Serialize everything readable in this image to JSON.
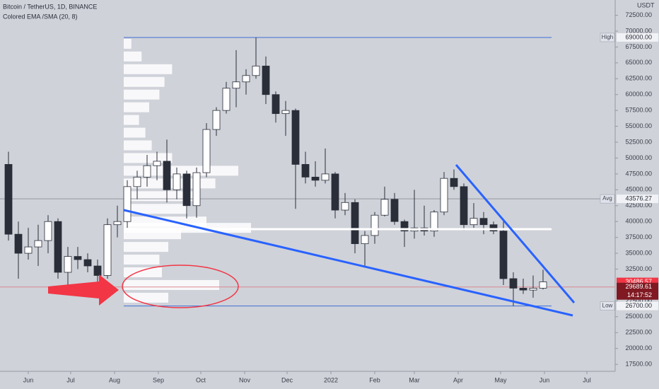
{
  "header": {
    "symbol": "Bitcoin / TetherUS, 1D, BINANCE",
    "indicator": "Colored EMA /SMA (20, 8)",
    "currency": "USDT"
  },
  "chart_data": {
    "type": "candlestick",
    "x": [
      -14,
      -7,
      0,
      7,
      14,
      21,
      28,
      35,
      42,
      49,
      56,
      63,
      70,
      77,
      84,
      91,
      98,
      105,
      112,
      119,
      126,
      133,
      140,
      147,
      154,
      161,
      168,
      175,
      182,
      189,
      196,
      203,
      210,
      217,
      224,
      231,
      238,
      245,
      252,
      259,
      266,
      273,
      280,
      287,
      294,
      301,
      308,
      315,
      322,
      329,
      336,
      343,
      350,
      357,
      364
    ],
    "open": [
      49000,
      38000,
      35000,
      36000,
      37000,
      40000,
      32000,
      34500,
      34000,
      33000,
      31500,
      39500,
      40000,
      45500,
      47000,
      48800,
      49500,
      45000,
      47500,
      42500,
      47700,
      54500,
      57500,
      61000,
      62000,
      63000,
      64500,
      60000,
      57000,
      57500,
      49000,
      47000,
      46500,
      47500,
      41800,
      43000,
      36500,
      37800,
      41000,
      43500,
      40000,
      38500,
      39000,
      38500,
      41500,
      46800,
      45500,
      39500,
      40500,
      39500,
      38500,
      31000,
      29500,
      29200,
      29500
    ],
    "high": [
      51000,
      40000,
      39000,
      39500,
      41000,
      40500,
      36000,
      36000,
      35000,
      34000,
      40500,
      42500,
      46500,
      48000,
      50500,
      51000,
      52900,
      48500,
      48000,
      48500,
      55500,
      58000,
      62000,
      67000,
      64000,
      69000,
      66000,
      60500,
      59000,
      57800,
      51000,
      49500,
      51500,
      47800,
      44500,
      43500,
      38500,
      41500,
      45500,
      44500,
      40300,
      45000,
      42500,
      41800,
      47800,
      48200,
      46000,
      42900,
      41500,
      40000,
      40000,
      32000,
      31000,
      31500,
      32400
    ],
    "low": [
      37000,
      31000,
      34000,
      33000,
      35000,
      31000,
      30000,
      32500,
      32000,
      29500,
      31000,
      37500,
      39000,
      43500,
      45500,
      46500,
      43000,
      43500,
      40500,
      40600,
      47000,
      53500,
      57000,
      58000,
      60000,
      62500,
      58500,
      55600,
      53500,
      42000,
      46000,
      45500,
      46000,
      40500,
      41000,
      35000,
      33000,
      36500,
      40800,
      39500,
      36000,
      37300,
      37800,
      37600,
      41000,
      45000,
      38600,
      39000,
      38000,
      38000,
      30000,
      26700,
      28600,
      28000,
      29300
    ],
    "close": [
      38000,
      35000,
      36000,
      37000,
      40000,
      32000,
      34500,
      34000,
      33000,
      31500,
      39500,
      40000,
      45500,
      47000,
      48800,
      49500,
      45000,
      47500,
      42500,
      47700,
      54500,
      57500,
      61000,
      62000,
      63000,
      64500,
      60000,
      57000,
      57500,
      49000,
      47000,
      46500,
      47500,
      41800,
      43000,
      36500,
      37800,
      41000,
      43500,
      40000,
      38500,
      39000,
      38500,
      41500,
      46800,
      45500,
      39500,
      40500,
      39500,
      38500,
      31000,
      29500,
      29200,
      29500,
      30500
    ],
    "up_color": "#ffffff",
    "down_color": "#2a2e39",
    "xlim": [
      -20,
      415
    ],
    "ylim": [
      16400,
      74900
    ],
    "xticks": [
      {
        "value": 0,
        "label": "Jun"
      },
      {
        "value": 30,
        "label": "Jul"
      },
      {
        "value": 61,
        "label": "Aug"
      },
      {
        "value": 92,
        "label": "Sep"
      },
      {
        "value": 122,
        "label": "Oct"
      },
      {
        "value": 153,
        "label": "Nov"
      },
      {
        "value": 183,
        "label": "Dec"
      },
      {
        "value": 214,
        "label": "2022"
      },
      {
        "value": 245,
        "label": "Feb"
      },
      {
        "value": 273,
        "label": "Mar"
      },
      {
        "value": 304,
        "label": "Apr"
      },
      {
        "value": 334,
        "label": "May"
      },
      {
        "value": 365,
        "label": "Jun"
      },
      {
        "value": 395,
        "label": "Jul"
      }
    ],
    "yticks": [
      {
        "value": 17500,
        "label": "17500.00"
      },
      {
        "value": 20000,
        "label": "20000.00"
      },
      {
        "value": 22500,
        "label": "22500.00"
      },
      {
        "value": 25000,
        "label": "25000.00"
      },
      {
        "value": 27500,
        "label": "27500.00"
      },
      {
        "value": 32500,
        "label": "32500.00"
      },
      {
        "value": 35000,
        "label": "35000.00"
      },
      {
        "value": 37500,
        "label": "37500.00"
      },
      {
        "value": 40000,
        "label": "40000.00"
      },
      {
        "value": 42500,
        "label": "42500.00"
      },
      {
        "value": 45000,
        "label": "45000.00"
      },
      {
        "value": 47500,
        "label": "47500.00"
      },
      {
        "value": 50000,
        "label": "50000.00"
      },
      {
        "value": 52500,
        "label": "52500.00"
      },
      {
        "value": 55000,
        "label": "55000.00"
      },
      {
        "value": 57500,
        "label": "57500.00"
      },
      {
        "value": 60000,
        "label": "60000.00"
      },
      {
        "value": 62500,
        "label": "62500.00"
      },
      {
        "value": 65000,
        "label": "65000.00"
      },
      {
        "value": 67500,
        "label": "67500.00"
      },
      {
        "value": 70000,
        "label": "70000.00"
      },
      {
        "value": 72500,
        "label": "72500.00"
      }
    ],
    "price_labels": [
      {
        "tag": "High",
        "value": 69000,
        "label": "69000.00",
        "color": "#f0f2f5",
        "line": "#3d6fd8"
      },
      {
        "tag": "Avg",
        "value": 43576.27,
        "label": "43576.27",
        "color": "#f0f2f5",
        "line": "#9598a1"
      },
      {
        "tag": "Low",
        "value": 26700,
        "label": "26700.00",
        "color": "#f0f2f5",
        "line": "#3d6fd8"
      },
      {
        "value": 30486.57,
        "label": "30486.57",
        "color": "#f23645"
      },
      {
        "value": 29689.61,
        "label": "29689.61",
        "color": "#801922",
        "countdown": "14:17:52",
        "line": "#d98a90"
      }
    ],
    "volume_profile": {
      "color": "#ffffff",
      "levels": [
        28000,
        30000,
        32000,
        34000,
        36000,
        38000,
        39000,
        40000,
        42000,
        44000,
        46000,
        48000,
        50000,
        52000,
        54000,
        56000,
        58000,
        60000,
        62000,
        64000,
        66000,
        68000
      ],
      "values": [
        35,
        75,
        30,
        28,
        35,
        45,
        100,
        65,
        50,
        60,
        72,
        90,
        38,
        22,
        17,
        12,
        20,
        28,
        32,
        38,
        14,
        6
      ]
    }
  }
}
